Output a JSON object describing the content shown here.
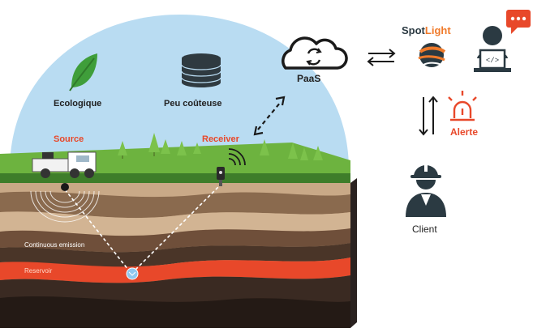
{
  "scene": {
    "eco_label": "Ecologique",
    "cost_label": "Peu coûteuse",
    "source_label": "Source",
    "receiver_label": "Receiver",
    "continuous_label": "Continuous emission",
    "reservoir_label": "Reservoir"
  },
  "cloud": {
    "label": "PaaS"
  },
  "brand": {
    "spot": "Spot",
    "light": "Light"
  },
  "alert": {
    "label": "Alerte"
  },
  "client": {
    "label": "Client"
  },
  "icons": {
    "leaf": "leaf-icon",
    "coins": "coins-icon",
    "cloud": "cloud-sync-icon",
    "spotlight_logo": "spotlight-logo-icon",
    "developer": "developer-laptop-icon",
    "chat": "chat-bubble-icon",
    "siren": "siren-icon",
    "worker": "worker-helmet-icon",
    "truck": "truck-icon",
    "sensor": "sensor-icon"
  },
  "colors": {
    "sky": "#b9dcf2",
    "grass": "#5aa632",
    "reservoir": "#e8482a",
    "accent_orange": "#f07a2a",
    "dark": "#2b3a42"
  }
}
